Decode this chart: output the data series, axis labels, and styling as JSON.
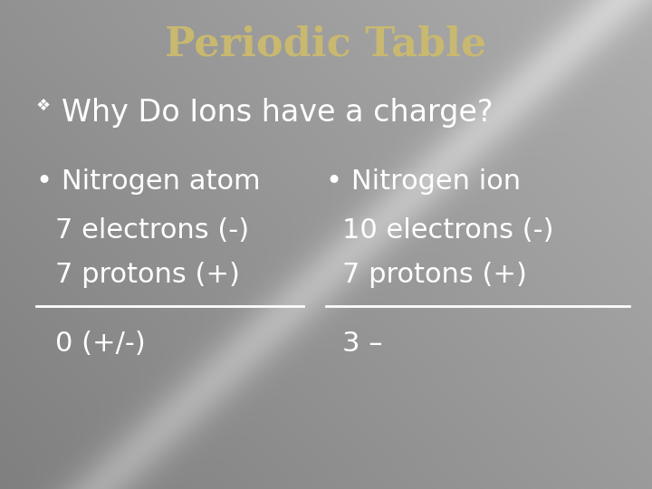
{
  "title": "Periodic Table",
  "title_color": "#C8B870",
  "title_fontsize": 32,
  "subtitle": "Why Do Ions have a charge?",
  "subtitle_color": "#FFFFFF",
  "subtitle_fontsize": 24,
  "bullet_symbol": "❖",
  "col1_bullet": "• Nitrogen atom",
  "col1_line1": "7 electrons (-)",
  "col1_line2": "7 protons (+)",
  "col1_result": "0 (+/-)",
  "col2_bullet": "• Nitrogen ion",
  "col2_line1": "10 electrons (-)",
  "col2_line2": "7 protons (+)",
  "col2_result": "3 –",
  "text_color": "#FFFFFF",
  "body_fontsize": 22,
  "result_fontsize": 22,
  "line_color": "#FFFFFF",
  "figsize": [
    7.2,
    5.4
  ],
  "dpi": 100
}
